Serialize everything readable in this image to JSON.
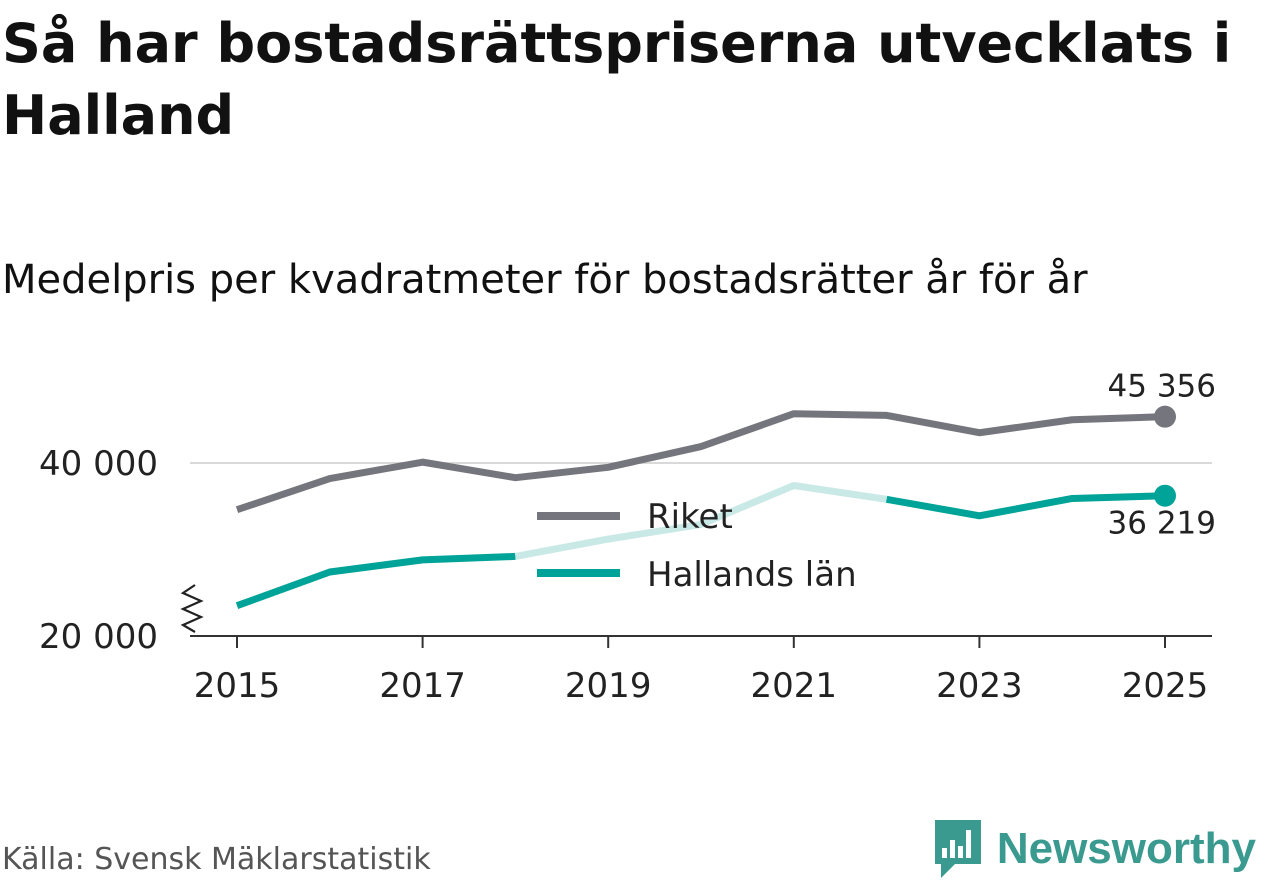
{
  "header": {
    "title": "Så har bostadsrättspriserna utvecklats i Halland",
    "subtitle": "Medelpris per kvadratmeter för bostadsrätter år för år"
  },
  "footer": {
    "source": "Källa: Svensk Mäklarstatistik",
    "brand": "Newsworthy",
    "brand_icon": "bar-chart-speech-bubble-icon"
  },
  "colors": {
    "riket": "#75757d",
    "halland": "#00a398",
    "halland_faded": "#c9e9e7",
    "grid": "#d9d9d9",
    "axis": "#333333",
    "brand": "#3a9a8f"
  },
  "chart_data": {
    "type": "line",
    "title": "Så har bostadsrättspriserna utvecklats i Halland",
    "subtitle": "Medelpris per kvadratmeter för bostadsrätter år för år",
    "xlabel": "",
    "ylabel": "",
    "x": [
      2015,
      2016,
      2017,
      2018,
      2019,
      2020,
      2021,
      2022,
      2023,
      2024,
      2025
    ],
    "xticks": [
      "2015",
      "2017",
      "2019",
      "2021",
      "2023",
      "2025"
    ],
    "yticks": [
      "20 000",
      "40 000"
    ],
    "ylim": [
      20000,
      45500
    ],
    "y_axis_break": true,
    "grid": "y at 40 000",
    "legend_position": "center",
    "series": [
      {
        "name": "Riket",
        "values": [
          34600,
          38200,
          40100,
          38300,
          39500,
          41900,
          45700,
          45500,
          43500,
          45000,
          45356
        ],
        "end_label": "45 356"
      },
      {
        "name": "Hallands län",
        "values": [
          23500,
          27400,
          28800,
          29200,
          31200,
          32900,
          37400,
          35800,
          33900,
          35900,
          36219
        ],
        "end_label": "36 219",
        "faded_ranges": [
          [
            2018,
            2019,
            2020,
            2021,
            2022
          ]
        ]
      }
    ]
  }
}
